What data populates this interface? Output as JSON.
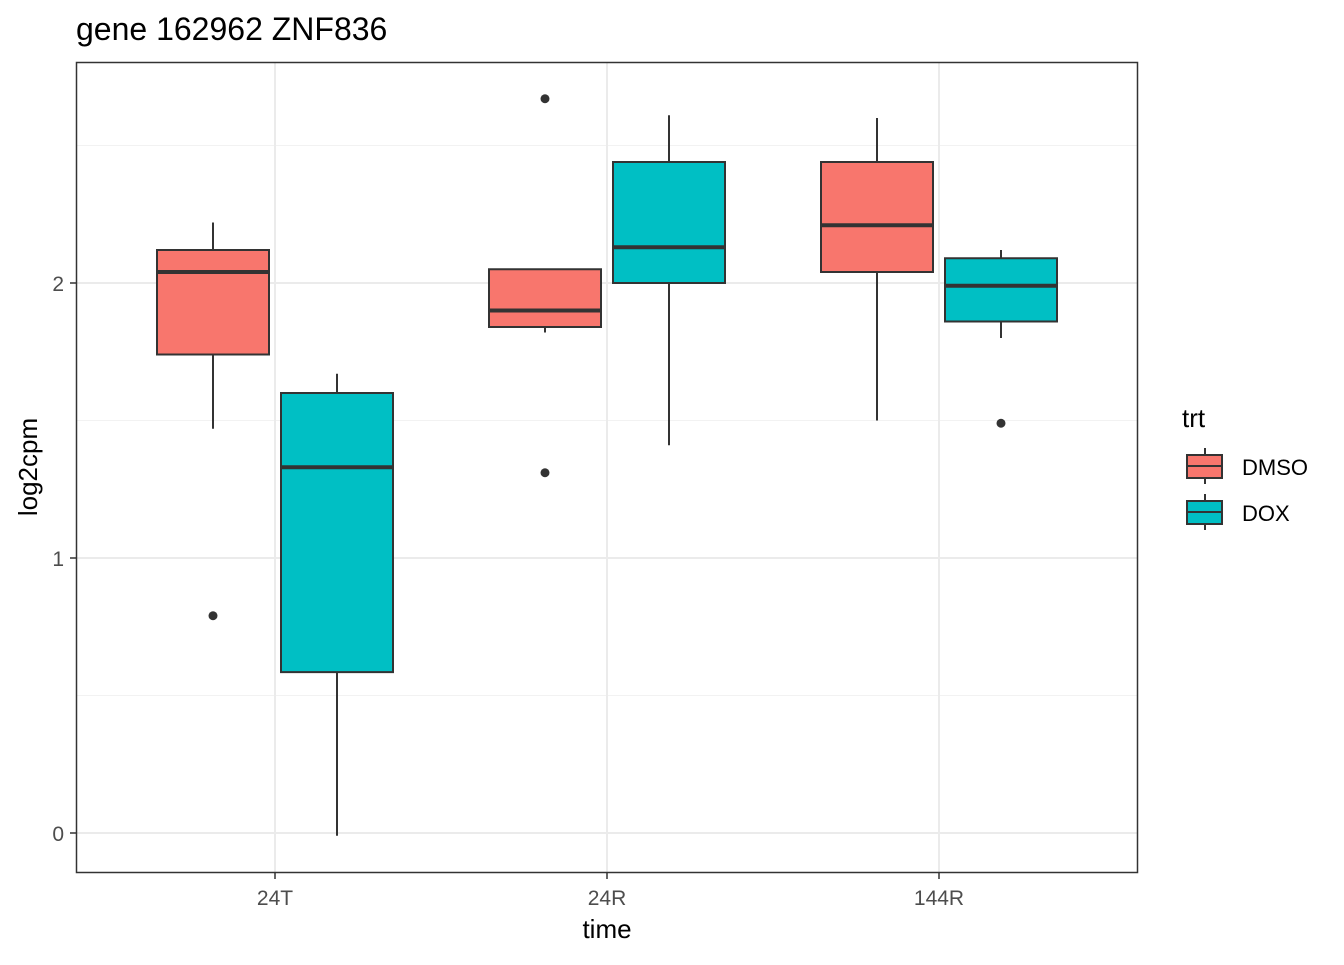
{
  "chart_data": {
    "type": "boxplot",
    "title": "gene 162962 ZNF836",
    "xlabel": "time",
    "ylabel": "log2cpm",
    "categories": [
      "24T",
      "24R",
      "144R"
    ],
    "ylim": [
      -0.14,
      2.8
    ],
    "yticks": [
      0,
      1,
      2
    ],
    "ytick_labels": [
      "0",
      "1",
      "2"
    ],
    "grid": true,
    "legend": {
      "title": "trt",
      "position": "right",
      "entries": [
        "DMSO",
        "DOX"
      ]
    },
    "series": [
      {
        "name": "DMSO",
        "color": "#F8766D",
        "boxes": [
          {
            "category": "24T",
            "whisker_low": 1.47,
            "q1": 1.74,
            "median": 2.04,
            "q3": 2.12,
            "whisker_high": 2.22,
            "outliers": [
              0.79
            ]
          },
          {
            "category": "24R",
            "whisker_low": 1.82,
            "q1": 1.84,
            "median": 1.9,
            "q3": 2.05,
            "whisker_high": 2.05,
            "outliers": [
              2.67,
              1.31
            ]
          },
          {
            "category": "144R",
            "whisker_low": 1.5,
            "q1": 2.04,
            "median": 2.21,
            "q3": 2.44,
            "whisker_high": 2.6,
            "outliers": []
          }
        ]
      },
      {
        "name": "DOX",
        "color": "#00BFC4",
        "boxes": [
          {
            "category": "24T",
            "whisker_low": -0.01,
            "q1": 0.585,
            "median": 1.33,
            "q3": 1.6,
            "whisker_high": 1.67,
            "outliers": []
          },
          {
            "category": "24R",
            "whisker_low": 1.41,
            "q1": 2.0,
            "median": 2.13,
            "q3": 2.44,
            "whisker_high": 2.61,
            "outliers": []
          },
          {
            "category": "144R",
            "whisker_low": 1.8,
            "q1": 1.86,
            "median": 1.99,
            "q3": 2.09,
            "whisker_high": 2.12,
            "outliers": [
              1.49
            ]
          }
        ]
      }
    ]
  }
}
